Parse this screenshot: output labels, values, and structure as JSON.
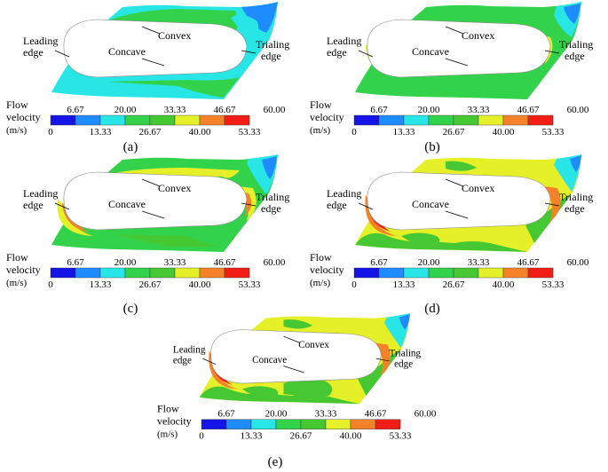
{
  "labels": {
    "leading_line1": "Leading",
    "leading_line2": "edge",
    "trailing_line1": "Trialing",
    "trailing_line2": "edge",
    "convex": "Convex",
    "concave": "Concave"
  },
  "legend": {
    "title_line1": "Flow",
    "title_line2": "velocity",
    "unit": "(m/s)",
    "levels": [
      "0",
      "6.67",
      "13.33",
      "20.00",
      "26.67",
      "33.33",
      "40.00",
      "46.67",
      "53.33",
      "60.00"
    ],
    "colors": [
      "#1414e6",
      "#1e8cff",
      "#28e6e6",
      "#32d24b",
      "#46c832",
      "#e6f028",
      "#f58228",
      "#f01e14"
    ]
  },
  "panels": [
    {
      "caption": "(a)",
      "scheme": "a"
    },
    {
      "caption": "(b)",
      "scheme": "b"
    },
    {
      "caption": "(c)",
      "scheme": "c"
    },
    {
      "caption": "(d)",
      "scheme": "d"
    },
    {
      "caption": "(e)",
      "scheme": "e"
    }
  ]
}
